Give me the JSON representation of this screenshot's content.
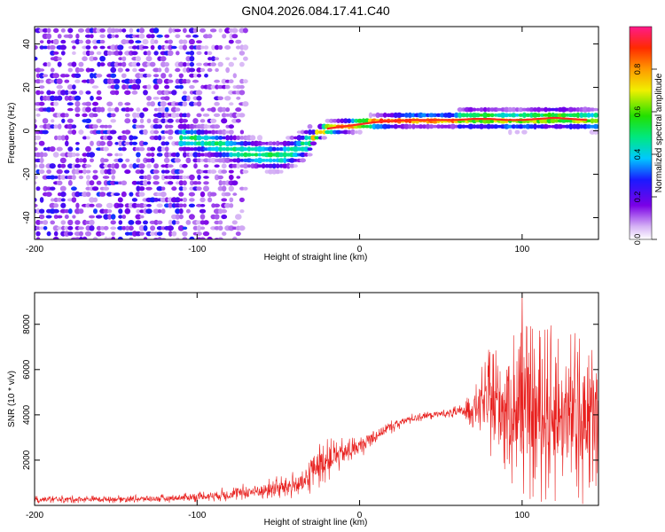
{
  "title": "GN04.2026.084.17.41.C40",
  "chart_data": [
    {
      "type": "heatmap",
      "xlabel": "Height of straight line (km)",
      "ylabel": "Frequency (Hz)",
      "xlim": [
        -200,
        147
      ],
      "ylim": [
        -50,
        48
      ],
      "x_ticks": [
        -200,
        -100,
        0,
        100
      ],
      "y_ticks": [
        -40,
        -20,
        0,
        20,
        40
      ],
      "ridge": {
        "x": [
          -110,
          -100,
          -90,
          -80,
          -70,
          -60,
          -50,
          -45,
          -40,
          -35,
          -30,
          -25,
          -20,
          -10,
          0,
          10,
          20,
          30,
          40,
          50,
          60,
          70,
          80,
          90,
          100,
          110,
          120,
          130,
          140,
          147
        ],
        "y": [
          -3,
          -4,
          -6,
          -8,
          -10,
          -11,
          -12,
          -11,
          -9,
          -7,
          -4,
          -1,
          1,
          2,
          3,
          4,
          4.5,
          5,
          5,
          5,
          5,
          5.5,
          5.5,
          5,
          5,
          5.5,
          6,
          5.5,
          5,
          5
        ]
      },
      "colorbar": {
        "label": "Normalized spectral amplitude",
        "ticks": [
          "0.0",
          "0.2",
          "0.4",
          "0.6",
          "0.8"
        ],
        "range": [
          0,
          1
        ]
      }
    },
    {
      "type": "line",
      "xlabel": "Height of straight line (km)",
      "ylabel": "SNR (10 * v/v)",
      "xlim": [
        -200,
        147
      ],
      "ylim": [
        0,
        9400
      ],
      "x_ticks": [
        -200,
        -100,
        0,
        100
      ],
      "y_ticks": [
        2000,
        4000,
        6000,
        8000
      ],
      "color": "#e8201e",
      "envelope": {
        "x": [
          -200,
          -150,
          -120,
          -100,
          -80,
          -60,
          -40,
          -32,
          -30,
          -20,
          -10,
          0,
          10,
          20,
          30,
          40,
          50,
          60,
          65,
          70,
          75,
          80,
          85,
          90,
          95,
          100,
          110,
          120,
          130,
          140,
          147
        ],
        "mean": [
          260,
          280,
          300,
          380,
          500,
          650,
          900,
          1000,
          1600,
          2000,
          2300,
          2600,
          3100,
          3500,
          3800,
          3950,
          4050,
          4100,
          4200,
          4300,
          4500,
          4600,
          4500,
          4400,
          4300,
          4200,
          4100,
          4000,
          3900,
          3900,
          3900
        ],
        "noise": [
          110,
          110,
          120,
          150,
          220,
          300,
          400,
          450,
          700,
          600,
          450,
          350,
          250,
          200,
          150,
          130,
          140,
          180,
          300,
          600,
          1000,
          1500,
          1900,
          2200,
          2400,
          2500,
          2500,
          2500,
          2500,
          2400,
          2300
        ]
      },
      "peak": {
        "x": 100,
        "y": 9400
      }
    }
  ]
}
